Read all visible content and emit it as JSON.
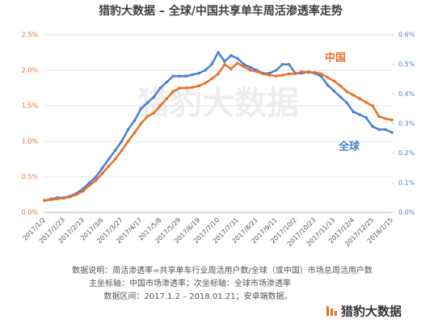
{
  "chart_data": {
    "type": "line",
    "title": "猎豹大数据 – 全球/中国共享单车周活渗透率走势",
    "watermark": "猎豹大数据",
    "logo": "猎豹大数据",
    "notes": [
      "数据说明：周活渗透率=共享单车行业周活用户数/全球（或中国）市场总周活用户数",
      "主坐标轴：中国市场渗透率；次坐标轴：全球市场渗透率",
      "数据区间：2017.1.2 – 2018.01.21；安卓端数据。"
    ],
    "categories": [
      "2017/1/2",
      null,
      null,
      "2017/1/23",
      null,
      null,
      "2017/2/13",
      null,
      null,
      "2017/3/6",
      null,
      null,
      "2017/3/27",
      null,
      null,
      "2017/4/17",
      null,
      null,
      "2017/5/8",
      null,
      null,
      "2017/5/29",
      null,
      null,
      "2017/6/19",
      null,
      null,
      "2017/7/10",
      null,
      null,
      "2017/7/31",
      null,
      null,
      "2017/8/21",
      null,
      null,
      "2017/9/11",
      null,
      null,
      "2017/10/2",
      null,
      null,
      "2017/10/23",
      null,
      null,
      "2017/11/13",
      null,
      null,
      "2017/12/4",
      null,
      null,
      "2017/12/25",
      null,
      null,
      "2018/1/15"
    ],
    "series": [
      {
        "name": "中国",
        "color": "#e8702a",
        "axis": "y",
        "values": [
          0.17,
          0.18,
          0.19,
          0.2,
          0.22,
          0.25,
          0.3,
          0.38,
          0.45,
          0.55,
          0.65,
          0.75,
          0.87,
          1.0,
          1.12,
          1.25,
          1.35,
          1.4,
          1.5,
          1.6,
          1.7,
          1.75,
          1.75,
          1.76,
          1.78,
          1.82,
          1.88,
          1.95,
          2.08,
          2.02,
          2.1,
          2.05,
          2.0,
          1.98,
          1.95,
          1.93,
          1.92,
          1.93,
          1.95,
          1.95,
          1.98,
          1.97,
          1.97,
          1.95,
          1.9,
          1.85,
          1.78,
          1.7,
          1.65,
          1.6,
          1.55,
          1.5,
          1.35,
          1.32,
          1.3
        ]
      },
      {
        "name": "全球",
        "color": "#4a7fd4",
        "axis": "y2",
        "values": [
          0.04,
          0.045,
          0.05,
          0.05,
          0.055,
          0.065,
          0.08,
          0.1,
          0.12,
          0.15,
          0.18,
          0.21,
          0.24,
          0.28,
          0.31,
          0.35,
          0.37,
          0.39,
          0.42,
          0.44,
          0.46,
          0.46,
          0.46,
          0.465,
          0.47,
          0.48,
          0.5,
          0.54,
          0.51,
          0.53,
          0.52,
          0.5,
          0.49,
          0.48,
          0.47,
          0.47,
          0.48,
          0.5,
          0.5,
          0.47,
          0.47,
          0.475,
          0.47,
          0.46,
          0.43,
          0.41,
          0.39,
          0.37,
          0.34,
          0.33,
          0.32,
          0.29,
          0.28,
          0.28,
          0.27
        ]
      }
    ],
    "ylim": [
      0,
      2.5
    ],
    "yticks": [
      {
        "value": 0,
        "label": "0.0%"
      },
      {
        "value": 0.5,
        "label": "0.5%"
      },
      {
        "value": 1.0,
        "label": "1.0%"
      },
      {
        "value": 1.5,
        "label": "1.5%"
      },
      {
        "value": 2.0,
        "label": "2.0%"
      },
      {
        "value": 2.5,
        "label": "2.5%"
      }
    ],
    "y2lim": [
      0,
      0.6
    ],
    "y2ticks": [
      {
        "value": 0,
        "label": "0.0%"
      },
      {
        "value": 0.1,
        "label": "0.1%"
      },
      {
        "value": 0.2,
        "label": "0.2%"
      },
      {
        "value": 0.3,
        "label": "0.3%"
      },
      {
        "value": 0.4,
        "label": "0.4%"
      },
      {
        "value": 0.5,
        "label": "0.5%"
      },
      {
        "value": 0.6,
        "label": "0.6%"
      }
    ],
    "grid": true
  }
}
